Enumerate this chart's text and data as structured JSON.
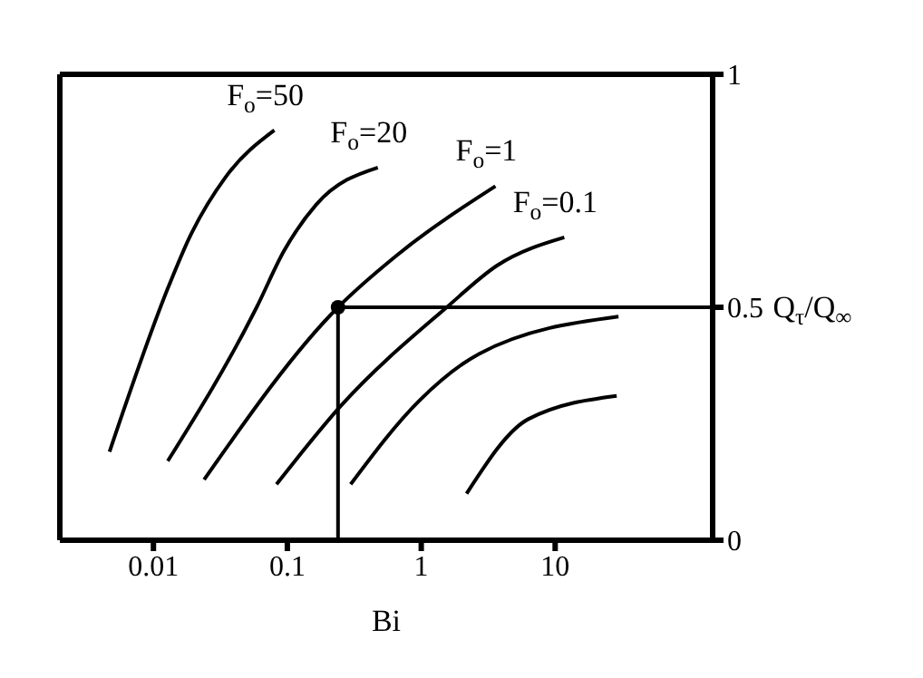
{
  "chart_data": {
    "type": "line",
    "xlabel": "Bi",
    "ylabel": "Q$_{τ}$/Q$_{∞}$",
    "log": "x",
    "xlim": [
      0.002,
      150
    ],
    "xticks": [
      0.01,
      0.1,
      1,
      10
    ],
    "ylim": [
      0,
      1
    ],
    "yticks": [
      0,
      0.5,
      1
    ],
    "grid": false,
    "legend": false,
    "marker": "none",
    "line_style": "solid",
    "series": [
      {
        "name": "F$_{o}$=50",
        "color": "#000000",
        "x": [
          0.0047,
          0.0132,
          0.0186,
          0.0347,
          0.08
        ],
        "values": [
          0.19,
          0.55,
          0.65,
          0.78,
          0.88
        ]
      },
      {
        "name": "F$_{o}$=20",
        "color": "#000000",
        "x": [
          0.0128,
          0.059,
          0.094,
          0.164,
          0.474
        ],
        "values": [
          0.17,
          0.5,
          0.62,
          0.72,
          0.8
        ]
      },
      {
        "name": "F$_{o}$=1",
        "color": "#000000",
        "x": [
          0.0239,
          0.239,
          0.647,
          3.58
        ],
        "values": [
          0.13,
          0.5,
          0.61,
          0.76
        ]
      },
      {
        "name": "F$_{o}$=0.1",
        "color": "#000000",
        "x": [
          0.083,
          0.254,
          1.55,
          3.7,
          11.7
        ],
        "values": [
          0.12,
          0.29,
          0.5,
          0.59,
          0.65
        ]
      },
      {
        "color": "#000000",
        "x": [
          0.297,
          0.97,
          2.7,
          29.7
        ],
        "values": [
          0.12,
          0.3,
          0.4,
          0.48
        ]
      },
      {
        "color": "#000000",
        "x": [
          2.18,
          6.3,
          28.8
        ],
        "values": [
          0.1,
          0.26,
          0.31
        ]
      },
      {
        "color": "#000000",
        "x": [
          0.239,
          0.239,
          150
        ],
        "values": [
          0,
          0.5,
          0.5
        ]
      },
      {
        "type": "scatter",
        "color": "#000000",
        "x": [
          0.239
        ],
        "values": [
          0.5
        ],
        "marker": "circle"
      }
    ]
  }
}
